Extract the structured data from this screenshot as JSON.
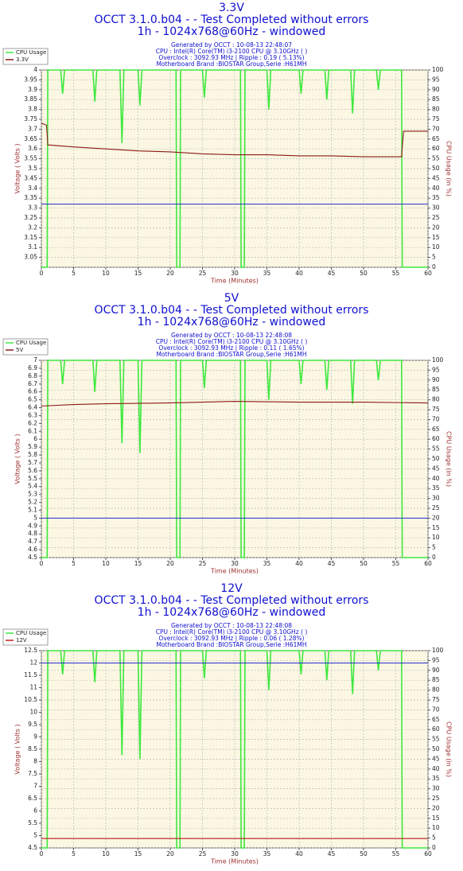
{
  "chart_data": [
    {
      "type": "line",
      "title": "3.3V",
      "subtitle": "OCCT 3.1.0.b04 -  - Test Completed without errors",
      "subtitle2": "1h - 1024x768@60Hz - windowed",
      "info": [
        "Generated by OCCT : 10-08-13 22:48:07",
        "CPU : Intel(R) Core(TM) i3-2100 CPU @ 3.10GHz (  )",
        "Overclock : 3092.93 MHz | Ripple : 0.19 ( 5.13%)",
        "Motherboard Brand :BIOSTAR Group,Serie :H61MH"
      ],
      "xlabel": "Time (Minutes)",
      "ylabel": "Voltage ( Volts )",
      "y2label": "CPU Usage (in %)",
      "xlim": [
        0,
        60
      ],
      "xticks": [
        0,
        5,
        10,
        15,
        20,
        25,
        30,
        35,
        40,
        45,
        50,
        55,
        60
      ],
      "ylim": [
        3,
        4
      ],
      "yticks": [
        3.05,
        3.1,
        3.15,
        3.2,
        3.25,
        3.3,
        3.35,
        3.4,
        3.45,
        3.5,
        3.55,
        3.6,
        3.65,
        3.7,
        3.75,
        3.8,
        3.85,
        3.9,
        3.95,
        4
      ],
      "y2lim": [
        0,
        100
      ],
      "y2ticks": [
        0,
        5,
        10,
        15,
        20,
        25,
        30,
        35,
        40,
        45,
        50,
        55,
        60,
        65,
        70,
        75,
        80,
        85,
        90,
        95,
        100
      ],
      "grid": true,
      "reference": 3.32,
      "reference_color": "#2a2ad0",
      "series": [
        {
          "name": "CPU Usage",
          "color": "#3ee83e",
          "axis": "y2",
          "x": [
            0,
            0.9,
            1,
            3,
            3.3,
            3.6,
            8,
            8.3,
            8.6,
            12.2,
            12.5,
            12.8,
            15,
            15.3,
            15.6,
            20.9,
            21,
            21.5,
            21.6,
            25,
            25.3,
            25.6,
            30.9,
            31,
            31.5,
            31.6,
            35,
            35.3,
            35.6,
            40,
            40.3,
            40.6,
            44,
            44.3,
            44.6,
            48,
            48.3,
            48.6,
            52,
            52.3,
            52.6,
            55.9,
            56,
            60
          ],
          "values": [
            0,
            0,
            100,
            100,
            88,
            100,
            100,
            84,
            100,
            100,
            63,
            100,
            100,
            82,
            100,
            100,
            0,
            0,
            100,
            100,
            86,
            100,
            100,
            0,
            0,
            100,
            100,
            80,
            100,
            100,
            88,
            100,
            100,
            85,
            100,
            100,
            78,
            100,
            100,
            90,
            100,
            100,
            0,
            0
          ]
        },
        {
          "name": "3.3V",
          "color": "#8b1a1a",
          "x": [
            0,
            0.8,
            1,
            5,
            10,
            15,
            20,
            25,
            30,
            35,
            40,
            45,
            50,
            55,
            55.9,
            56.2,
            60
          ],
          "values": [
            3.73,
            3.72,
            3.62,
            3.61,
            3.6,
            3.59,
            3.585,
            3.575,
            3.57,
            3.57,
            3.565,
            3.565,
            3.56,
            3.56,
            3.56,
            3.69,
            3.69
          ]
        }
      ]
    },
    {
      "type": "line",
      "title": "5V",
      "subtitle": "OCCT 3.1.0.b04 -  - Test Completed without errors",
      "subtitle2": "1h - 1024x768@60Hz - windowed",
      "info": [
        "Generated by OCCT : 10-08-13 22:48:08",
        "CPU : Intel(R) Core(TM) i3-2100 CPU @ 3.10GHz (  )",
        "Overclock : 3092.93 MHz | Ripple : 0.11 ( 1.65%)",
        "Motherboard Brand :BIOSTAR Group,Serie :H61MH"
      ],
      "xlabel": "Time (Minutes)",
      "ylabel": "Voltage ( Volts )",
      "y2label": "CPU Usage (in %)",
      "xlim": [
        0,
        60
      ],
      "xticks": [
        0,
        5,
        10,
        15,
        20,
        25,
        30,
        35,
        40,
        45,
        50,
        55,
        60
      ],
      "ylim": [
        4.5,
        7
      ],
      "yticks": [
        4.5,
        4.6,
        4.7,
        4.8,
        4.9,
        5,
        5.1,
        5.2,
        5.3,
        5.4,
        5.5,
        5.6,
        5.7,
        5.8,
        5.9,
        6,
        6.1,
        6.2,
        6.3,
        6.4,
        6.5,
        6.6,
        6.7,
        6.8,
        6.9,
        7
      ],
      "y2lim": [
        0,
        100
      ],
      "y2ticks": [
        0,
        5,
        10,
        15,
        20,
        25,
        30,
        35,
        40,
        45,
        50,
        55,
        60,
        65,
        70,
        75,
        80,
        85,
        90,
        95,
        100
      ],
      "grid": true,
      "reference": 5,
      "reference_color": "#2a2ad0",
      "series": [
        {
          "name": "CPU Usage",
          "color": "#3ee83e",
          "axis": "y2",
          "x": [
            0,
            0.9,
            1,
            3,
            3.3,
            3.6,
            8,
            8.3,
            8.6,
            12.2,
            12.5,
            12.8,
            15,
            15.3,
            15.6,
            20.9,
            21,
            21.5,
            21.6,
            25,
            25.3,
            25.6,
            30.9,
            31,
            31.5,
            31.6,
            35,
            35.3,
            35.6,
            40,
            40.3,
            40.6,
            44,
            44.3,
            44.6,
            48,
            48.3,
            48.6,
            52,
            52.3,
            52.6,
            55.9,
            56,
            60
          ],
          "values": [
            0,
            0,
            100,
            100,
            88,
            100,
            100,
            84,
            100,
            100,
            58,
            100,
            100,
            53,
            100,
            100,
            0,
            0,
            100,
            100,
            86,
            100,
            100,
            0,
            0,
            100,
            100,
            80,
            100,
            100,
            88,
            100,
            100,
            85,
            100,
            100,
            78,
            100,
            100,
            90,
            100,
            100,
            0,
            0
          ]
        },
        {
          "name": "5V",
          "color": "#8b1a1a",
          "x": [
            0,
            5,
            10,
            20,
            30,
            40,
            50,
            60
          ],
          "values": [
            6.42,
            6.44,
            6.45,
            6.46,
            6.48,
            6.47,
            6.47,
            6.46
          ]
        }
      ]
    },
    {
      "type": "line",
      "title": "12V",
      "subtitle": "OCCT 3.1.0.b04 -  - Test Completed without errors",
      "subtitle2": "1h - 1024x768@60Hz - windowed",
      "info": [
        "Generated by OCCT : 10-08-13 22:48:08",
        "CPU : Intel(R) Core(TM) i3-2100 CPU @ 3.10GHz (  )",
        "Overclock : 3092.93 MHz | Ripple : 0.06 ( 1.28%)",
        "Motherboard Brand :BIOSTAR Group,Serie :H61MH"
      ],
      "xlabel": "Time (Minutes)",
      "ylabel": "Voltage ( Volts )",
      "y2label": "CPU Usage (in %)",
      "xlim": [
        0,
        60
      ],
      "xticks": [
        0,
        5,
        10,
        15,
        20,
        25,
        30,
        35,
        40,
        45,
        50,
        55,
        60
      ],
      "ylim": [
        4.5,
        12.5
      ],
      "yticks": [
        4.5,
        5,
        5.5,
        6,
        6.5,
        7,
        7.5,
        8,
        8.5,
        9,
        9.5,
        10,
        10.5,
        11,
        11.5,
        12,
        12.5
      ],
      "y2lim": [
        0,
        100
      ],
      "y2ticks": [
        0,
        5,
        10,
        15,
        20,
        25,
        30,
        35,
        40,
        45,
        50,
        55,
        60,
        65,
        70,
        75,
        80,
        85,
        90,
        95,
        100
      ],
      "grid": true,
      "reference": 12,
      "reference_color": "#2a2ad0",
      "series": [
        {
          "name": "CPU Usage",
          "color": "#3ee83e",
          "axis": "y2",
          "x": [
            0,
            0.9,
            1,
            3,
            3.3,
            3.6,
            8,
            8.3,
            8.6,
            12.2,
            12.5,
            12.8,
            15,
            15.3,
            15.6,
            20.9,
            21,
            21.5,
            21.6,
            25,
            25.3,
            25.6,
            30.9,
            31,
            31.5,
            31.6,
            35,
            35.3,
            35.6,
            40,
            40.3,
            40.6,
            44,
            44.3,
            44.6,
            48,
            48.3,
            48.6,
            52,
            52.3,
            52.6,
            55.9,
            56,
            60
          ],
          "values": [
            0,
            0,
            100,
            100,
            88,
            100,
            100,
            84,
            100,
            100,
            47,
            100,
            100,
            45,
            100,
            100,
            0,
            0,
            100,
            100,
            86,
            100,
            100,
            0,
            0,
            100,
            100,
            80,
            100,
            100,
            88,
            100,
            100,
            85,
            100,
            100,
            78,
            100,
            100,
            90,
            100,
            100,
            0,
            0
          ]
        },
        {
          "name": "12V",
          "color": "#c02020",
          "x": [
            0,
            60
          ],
          "values": [
            4.88,
            4.88
          ]
        }
      ]
    }
  ]
}
